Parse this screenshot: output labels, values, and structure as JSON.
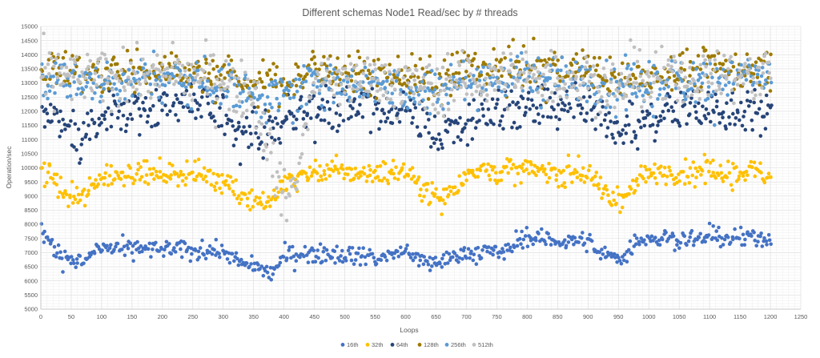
{
  "chart_data": {
    "type": "scatter",
    "title": "Different schemas Node1 Read/sec by # threads",
    "xlabel": "Loops",
    "ylabel": "Operation/sec",
    "xlim": [
      0,
      1250
    ],
    "ylim": [
      5000,
      15000
    ],
    "x_ticks": [
      0,
      50,
      100,
      150,
      200,
      250,
      300,
      350,
      400,
      450,
      500,
      550,
      600,
      650,
      700,
      750,
      800,
      850,
      900,
      950,
      1000,
      1050,
      1100,
      1150,
      1200,
      1250
    ],
    "y_ticks": [
      5000,
      5500,
      6000,
      6500,
      7000,
      7500,
      8000,
      8500,
      9000,
      9500,
      10000,
      10500,
      11000,
      11500,
      12000,
      12500,
      13000,
      13500,
      14000,
      14500,
      15000
    ],
    "grid": true,
    "legend_position": "bottom",
    "series": [
      {
        "name": "16th",
        "color": "#4472C4",
        "profile": [
          [
            0,
            7800
          ],
          [
            20,
            7200
          ],
          [
            50,
            6750
          ],
          [
            70,
            6650
          ],
          [
            90,
            7050
          ],
          [
            100,
            7150
          ],
          [
            200,
            7100
          ],
          [
            300,
            7050
          ],
          [
            330,
            6600
          ],
          [
            360,
            6400
          ],
          [
            380,
            6300
          ],
          [
            400,
            6900
          ],
          [
            450,
            7000
          ],
          [
            530,
            6900
          ],
          [
            550,
            6800
          ],
          [
            600,
            7000
          ],
          [
            640,
            6600
          ],
          [
            660,
            6700
          ],
          [
            700,
            7000
          ],
          [
            770,
            7000
          ],
          [
            780,
            7500
          ],
          [
            900,
            7400
          ],
          [
            920,
            6900
          ],
          [
            960,
            6800
          ],
          [
            980,
            7500
          ],
          [
            1200,
            7500
          ]
        ],
        "spread": 160
      },
      {
        "name": "32th",
        "color": "#FFC000",
        "profile": [
          [
            0,
            9900
          ],
          [
            20,
            9600
          ],
          [
            40,
            9000
          ],
          [
            70,
            8900
          ],
          [
            90,
            9400
          ],
          [
            110,
            9800
          ],
          [
            200,
            9800
          ],
          [
            260,
            9800
          ],
          [
            300,
            9600
          ],
          [
            330,
            9000
          ],
          [
            360,
            8800
          ],
          [
            380,
            8900
          ],
          [
            400,
            9500
          ],
          [
            450,
            9800
          ],
          [
            500,
            9900
          ],
          [
            530,
            9800
          ],
          [
            600,
            9900
          ],
          [
            640,
            9100
          ],
          [
            660,
            8900
          ],
          [
            690,
            9500
          ],
          [
            700,
            9900
          ],
          [
            800,
            9900
          ],
          [
            900,
            9800
          ],
          [
            920,
            9200
          ],
          [
            940,
            8900
          ],
          [
            970,
            9100
          ],
          [
            990,
            9800
          ],
          [
            1200,
            9850
          ]
        ],
        "spread": 220
      },
      {
        "name": "64th",
        "color": "#264478",
        "profile": [
          [
            0,
            12000
          ],
          [
            20,
            11900
          ],
          [
            50,
            11200
          ],
          [
            70,
            11100
          ],
          [
            100,
            11500
          ],
          [
            130,
            12200
          ],
          [
            250,
            12200
          ],
          [
            300,
            11900
          ],
          [
            330,
            11400
          ],
          [
            370,
            11200
          ],
          [
            400,
            11600
          ],
          [
            420,
            12000
          ],
          [
            500,
            12200
          ],
          [
            550,
            12000
          ],
          [
            600,
            12100
          ],
          [
            640,
            11300
          ],
          [
            680,
            11200
          ],
          [
            720,
            12000
          ],
          [
            800,
            12100
          ],
          [
            900,
            12000
          ],
          [
            940,
            11200
          ],
          [
            980,
            11300
          ],
          [
            1020,
            12000
          ],
          [
            1100,
            12100
          ],
          [
            1200,
            12000
          ]
        ],
        "spread": 400
      },
      {
        "name": "128th",
        "color": "#9E7A00",
        "profile": [
          [
            0,
            13500
          ],
          [
            100,
            13300
          ],
          [
            200,
            13500
          ],
          [
            300,
            13300
          ],
          [
            350,
            13000
          ],
          [
            400,
            13000
          ],
          [
            450,
            13500
          ],
          [
            550,
            13300
          ],
          [
            600,
            13300
          ],
          [
            650,
            12900
          ],
          [
            700,
            13500
          ],
          [
            800,
            13500
          ],
          [
            900,
            13500
          ],
          [
            950,
            13000
          ],
          [
            1000,
            13300
          ],
          [
            1100,
            13500
          ],
          [
            1200,
            13500
          ]
        ],
        "spread": 360
      },
      {
        "name": "256th",
        "color": "#5B9BD5",
        "profile": [
          [
            0,
            13200
          ],
          [
            100,
            13000
          ],
          [
            200,
            13200
          ],
          [
            300,
            13000
          ],
          [
            350,
            12600
          ],
          [
            400,
            12500
          ],
          [
            450,
            13100
          ],
          [
            550,
            13000
          ],
          [
            650,
            12700
          ],
          [
            700,
            13100
          ],
          [
            800,
            13200
          ],
          [
            900,
            13100
          ],
          [
            950,
            12700
          ],
          [
            1000,
            13000
          ],
          [
            1100,
            13200
          ],
          [
            1200,
            13200
          ]
        ],
        "spread": 420
      },
      {
        "name": "512th",
        "color": "#C0C0C0",
        "profile": [
          [
            0,
            13300
          ],
          [
            100,
            13100
          ],
          [
            200,
            13300
          ],
          [
            300,
            13100
          ],
          [
            350,
            12700
          ],
          [
            390,
            9500
          ],
          [
            410,
            8800
          ],
          [
            430,
            11000
          ],
          [
            450,
            13000
          ],
          [
            550,
            13100
          ],
          [
            650,
            12700
          ],
          [
            700,
            13100
          ],
          [
            800,
            13200
          ],
          [
            900,
            13100
          ],
          [
            950,
            12800
          ],
          [
            1000,
            13100
          ],
          [
            1100,
            13200
          ],
          [
            1200,
            13300
          ]
        ],
        "spread": 480
      }
    ]
  }
}
